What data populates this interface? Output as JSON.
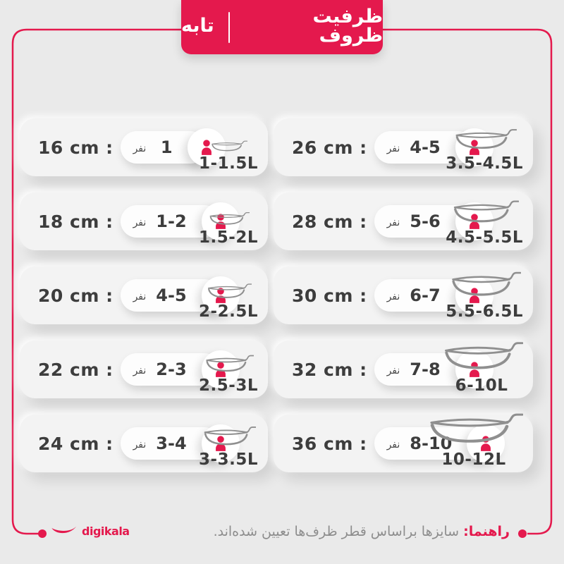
{
  "header": {
    "title_right": "ظرفیت ظروف",
    "title_left": "تابه"
  },
  "cards": [
    {
      "size": "16 cm :",
      "count": "1",
      "unit": "نفر",
      "liters": "1-1.5L",
      "pan": {
        "w": 54,
        "h": 20
      }
    },
    {
      "size": "18 cm :",
      "count": "1-2",
      "unit": "نفر",
      "liters": "1.5-2L",
      "pan": {
        "w": 60,
        "h": 24
      }
    },
    {
      "size": "20 cm :",
      "count": "4-5",
      "unit": "نفر",
      "liters": "2-2.5L",
      "pan": {
        "w": 66,
        "h": 28
      }
    },
    {
      "size": "22 cm :",
      "count": "2-3",
      "unit": "نفر",
      "liters": "2.5-3L",
      "pan": {
        "w": 72,
        "h": 32
      }
    },
    {
      "size": "24 cm :",
      "count": "3-4",
      "unit": "نفر",
      "liters": "3-3.5L",
      "pan": {
        "w": 78,
        "h": 36
      }
    },
    {
      "size": "26 cm :",
      "count": "4-5",
      "unit": "نفر",
      "liters": "3.5-4.5L",
      "pan": {
        "w": 92,
        "h": 38
      }
    },
    {
      "size": "28 cm :",
      "count": "5-6",
      "unit": "نفر",
      "liters": "4.5-5.5L",
      "pan": {
        "w": 98,
        "h": 42
      }
    },
    {
      "size": "30 cm :",
      "count": "6-7",
      "unit": "نفر",
      "liters": "5.5-6.5L",
      "pan": {
        "w": 104,
        "h": 46
      }
    },
    {
      "size": "32 cm :",
      "count": "7-8",
      "unit": "نفر",
      "liters": "6-10L",
      "pan": {
        "w": 118,
        "h": 52
      }
    },
    {
      "size": "36 cm :",
      "count": "8-10",
      "unit": "نفر",
      "liters": "10-12L",
      "pan": {
        "w": 140,
        "h": 56
      }
    }
  ],
  "footer": {
    "brand": "digikala",
    "note_label": "راهنما:",
    "note_text": " سایزها براساس قطر ظرف‌ها تعیین شده‌اند."
  },
  "icons": {
    "person": "person-icon",
    "pan": "frying-pan-icon",
    "smile": "digikala-smile-logo"
  },
  "colors": {
    "red": "#e4194d",
    "background": "#eaeaea",
    "card": "#f3f3f3",
    "dark_text": "#3d3d3d",
    "pan_stroke": "#8f8f8f",
    "footer_gray": "#8d8d8d"
  }
}
